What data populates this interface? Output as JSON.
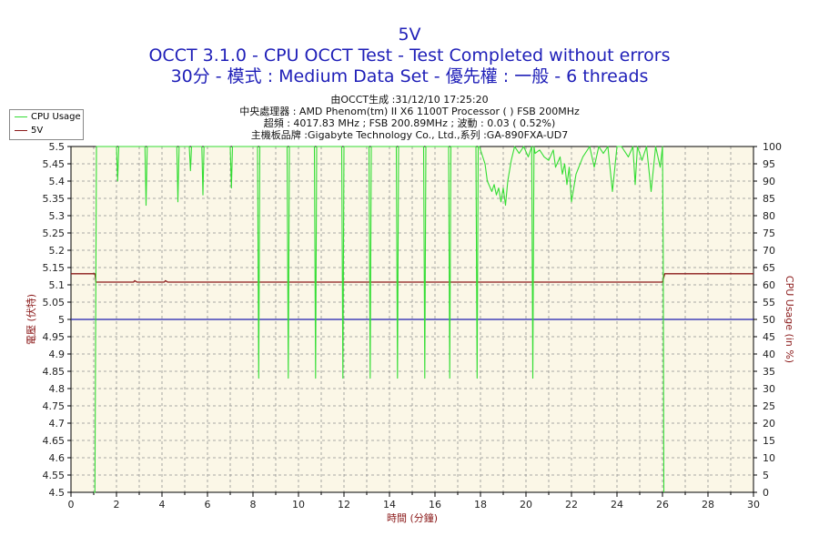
{
  "title": {
    "line1": "5V",
    "line2": "OCCT 3.1.0 - CPU OCCT Test - Test Completed without errors",
    "line3": "30分 - 模式 : Medium Data Set - 優先權 : 一般 - 6 threads"
  },
  "info": {
    "line1": "由OCCT生成 :31/12/10 17:25:20",
    "line2": "中央處理器 : AMD Phenom(tm) II X6 1100T Processor (  ) FSB 200MHz",
    "line3": "超頻 : 4017.83 MHz ; FSB 200.89MHz ; 波動 : 0.03 ( 0.52%)",
    "line4": "主機板品牌 :Gigabyte Technology Co., Ltd.,系列 :GA-890FXA-UD7"
  },
  "legend": [
    {
      "label": "CPU Usage",
      "color": "#33dd33"
    },
    {
      "label": "5V",
      "color": "#8b1a1a"
    }
  ],
  "colors": {
    "plot_bg": "#fbf7e7",
    "grid": "#909090",
    "cpu_line": "#33dd33",
    "voltage_line": "#8b1a1a",
    "reference_line": "#1c1cb0",
    "left_axis_text": "#8b1a1a",
    "right_axis_text": "#8b1a1a",
    "x_axis_text": "#8b1a1a"
  },
  "chart_data": {
    "type": "line",
    "xlabel": "時間 (分鐘)",
    "ylabel_left": "電壓 (伏特)",
    "ylabel_right": "CPU Usage (in %)",
    "xlim": [
      0,
      30
    ],
    "ylim_left": [
      4.5,
      5.5
    ],
    "ylim_right": [
      0,
      100
    ],
    "x_ticks": [
      "0",
      "2",
      "4",
      "6",
      "8",
      "10",
      "12",
      "14",
      "16",
      "18",
      "20",
      "22",
      "24",
      "26",
      "28",
      "30"
    ],
    "y_left_ticks": [
      "4.5",
      "4.55",
      "4.6",
      "4.65",
      "4.7",
      "4.75",
      "4.8",
      "4.85",
      "4.9",
      "4.95",
      "5",
      "5.05",
      "5.1",
      "5.15",
      "5.2",
      "5.25",
      "5.3",
      "5.35",
      "5.4",
      "5.45",
      "5.5"
    ],
    "y_right_ticks": [
      "0",
      "5",
      "10",
      "15",
      "20",
      "25",
      "30",
      "35",
      "40",
      "45",
      "50",
      "55",
      "60",
      "65",
      "70",
      "75",
      "80",
      "85",
      "90",
      "95",
      "100"
    ],
    "grid": true,
    "legend_position": "top-left",
    "reference_line_value": 5.0,
    "series": [
      {
        "name": "5V",
        "axis": "left",
        "x": [
          0,
          1.05,
          1.1,
          2.75,
          2.8,
          2.9,
          4.1,
          4.15,
          4.25,
          26.0,
          26.1,
          30
        ],
        "y": [
          5.132,
          5.132,
          5.108,
          5.108,
          5.112,
          5.108,
          5.108,
          5.112,
          5.108,
          5.108,
          5.132,
          5.132
        ]
      },
      {
        "name": "CPU Usage",
        "axis": "right",
        "x": [
          1.0,
          1.05,
          1.12,
          1.2,
          2.0,
          2.05,
          2.1,
          2.15,
          2.3,
          3.25,
          3.3,
          3.35,
          3.4,
          4.65,
          4.7,
          4.75,
          4.8,
          5.2,
          5.25,
          5.3,
          5.35,
          5.75,
          5.8,
          5.85,
          5.9,
          7.0,
          7.05,
          7.1,
          7.15,
          8.2,
          8.25,
          8.3,
          8.35,
          9.5,
          9.55,
          9.6,
          9.65,
          10.7,
          10.75,
          10.8,
          10.85,
          11.9,
          11.95,
          12.0,
          12.05,
          13.1,
          13.15,
          13.2,
          13.25,
          14.3,
          14.35,
          14.4,
          14.45,
          15.5,
          15.55,
          15.6,
          15.65,
          16.6,
          16.65,
          16.7,
          16.75,
          17.8,
          17.85,
          17.9,
          17.95,
          18.2,
          18.3,
          18.5,
          18.6,
          18.7,
          18.8,
          18.9,
          19.0,
          19.1,
          19.2,
          19.35,
          19.5,
          19.7,
          19.9,
          20.1,
          20.25,
          20.3,
          20.35,
          20.4,
          20.6,
          20.8,
          21.0,
          21.2,
          21.3,
          21.5,
          21.6,
          21.7,
          21.8,
          21.9,
          22.0,
          22.2,
          22.5,
          22.8,
          23.0,
          23.2,
          23.4,
          23.6,
          23.8,
          24.0,
          24.2,
          24.5,
          24.7,
          24.8,
          24.9,
          25.1,
          25.3,
          25.5,
          25.7,
          25.9,
          26.0,
          26.03,
          26.06
        ],
        "y": [
          0,
          0,
          100,
          100,
          100,
          90,
          100,
          100,
          100,
          100,
          83,
          100,
          100,
          100,
          84,
          100,
          100,
          100,
          93,
          100,
          100,
          100,
          86,
          100,
          100,
          100,
          88,
          100,
          100,
          100,
          33,
          100,
          100,
          100,
          33,
          100,
          100,
          100,
          33,
          100,
          100,
          100,
          33,
          100,
          100,
          100,
          33,
          100,
          100,
          100,
          33,
          100,
          100,
          100,
          33,
          100,
          100,
          100,
          33,
          100,
          100,
          100,
          33,
          100,
          100,
          95,
          90,
          87,
          89,
          86,
          88,
          84,
          88,
          83,
          90,
          96,
          100,
          98,
          100,
          97,
          100,
          33,
          100,
          98,
          99,
          97,
          96,
          99,
          94,
          97,
          92,
          95,
          89,
          94,
          84,
          92,
          97,
          100,
          94,
          100,
          98,
          100,
          87,
          100,
          100,
          97,
          100,
          89,
          100,
          96,
          100,
          87,
          100,
          94,
          100,
          70,
          0
        ]
      }
    ]
  }
}
